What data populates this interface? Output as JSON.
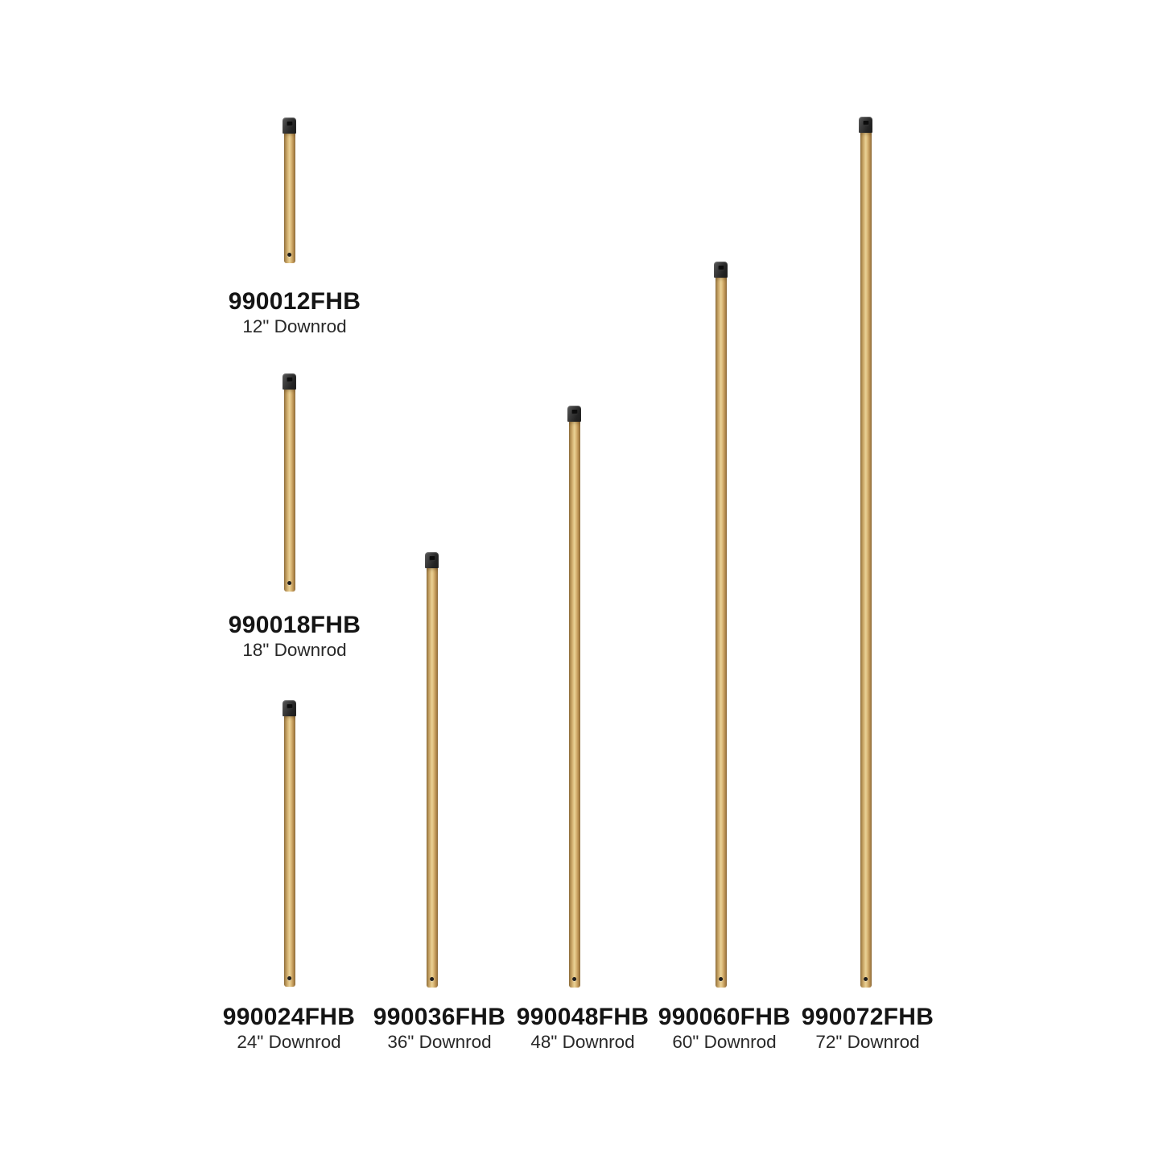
{
  "page": {
    "background_color": "#ffffff",
    "description": "Product catalog image of seven ceiling fan downrods in heritage brass finish with black caps"
  },
  "colors": {
    "brass_highlight": "#e9d195",
    "brass_mid": "#d3b172",
    "brass_shadow": "#8a6a3a",
    "cap_black": "#232323",
    "text_model": "#151515",
    "text_size": "#282828"
  },
  "products": [
    {
      "model": "990012FHB",
      "size_label": "12\" Downrod",
      "length_inches": 12
    },
    {
      "model": "990018FHB",
      "size_label": "18\" Downrod",
      "length_inches": 18
    },
    {
      "model": "990024FHB",
      "size_label": "24\" Downrod",
      "length_inches": 24
    },
    {
      "model": "990036FHB",
      "size_label": "36\" Downrod",
      "length_inches": 36
    },
    {
      "model": "990048FHB",
      "size_label": "48\" Downrod",
      "length_inches": 48
    },
    {
      "model": "990060FHB",
      "size_label": "60\" Downrod",
      "length_inches": 60
    },
    {
      "model": "990072FHB",
      "size_label": "72\" Downrod",
      "length_inches": 72
    }
  ]
}
